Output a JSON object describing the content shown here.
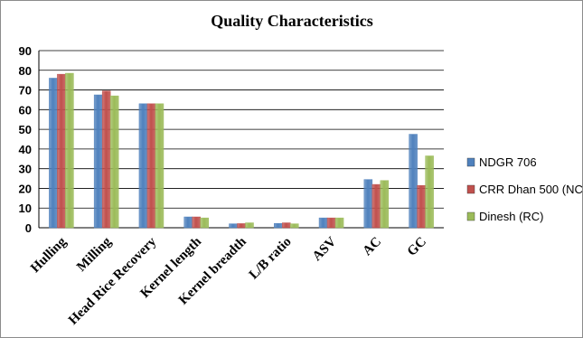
{
  "chart_data": {
    "type": "bar",
    "title": "Quality Characteristics",
    "xlabel": "",
    "ylabel": "",
    "categories": [
      "Hulling",
      "Milling",
      "Head Rice Recovery",
      "Kernel length",
      "Kernel breadth",
      "L/B ratio",
      "ASV",
      "AC",
      "GC"
    ],
    "series": [
      {
        "name": "NDGR 706",
        "color": "#4f81bd",
        "values": [
          76,
          67.5,
          63,
          5.5,
          2,
          2.2,
          5,
          24.5,
          47.5
        ]
      },
      {
        "name": "CRR Dhan 500 (NC",
        "color": "#c0504d",
        "values": [
          78,
          69.5,
          63,
          5.5,
          2.1,
          2.5,
          5,
          22,
          21.5
        ]
      },
      {
        "name": "Dinesh (RC)",
        "color": "#9bbb59",
        "values": [
          78.5,
          67,
          63,
          5,
          2.5,
          2,
          5,
          24,
          36.5
        ]
      }
    ],
    "y_ticks": [
      "0",
      "10",
      "20",
      "30",
      "40",
      "50",
      "60",
      "70",
      "80",
      "90"
    ],
    "ylim": [
      0,
      90
    ],
    "grid": true,
    "legend_position": "right"
  }
}
